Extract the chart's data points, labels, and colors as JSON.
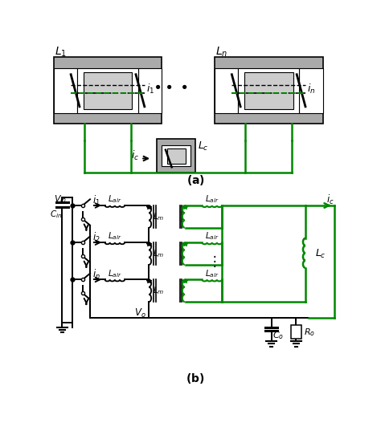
{
  "bg_color": "#ffffff",
  "gray_core": "#aaaaaa",
  "gray_mid": "#cccccc",
  "white": "#ffffff",
  "black": "#000000",
  "green": "#008800",
  "fig_width": 4.74,
  "fig_height": 5.42,
  "dpi": 100
}
